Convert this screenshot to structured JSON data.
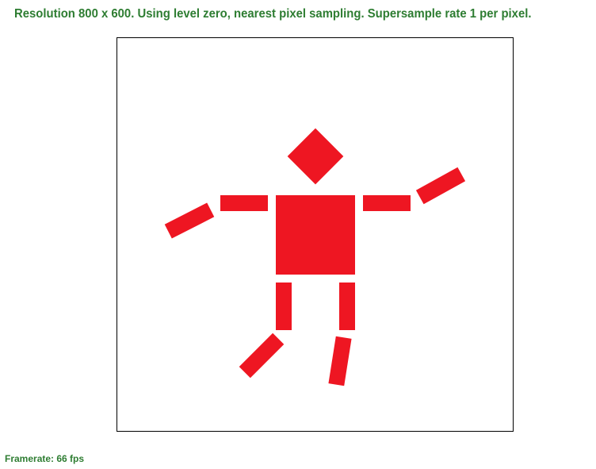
{
  "header": {
    "status_text": "Resolution 800 x 600. Using level zero, nearest pixel sampling. Supersample rate 1 per pixel."
  },
  "footer": {
    "framerate_text": "Framerate: 66 fps"
  },
  "colors": {
    "shape_fill": "#ee1622",
    "status_text": "#2e7d32",
    "canvas_border": "#000000",
    "background": "#ffffff"
  }
}
